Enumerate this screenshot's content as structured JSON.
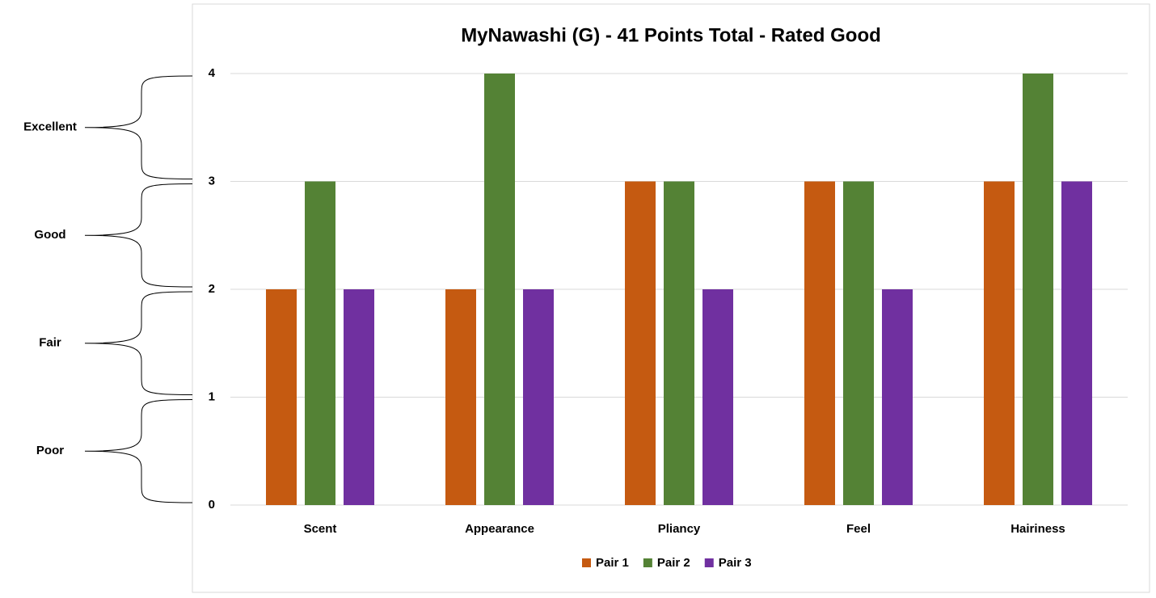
{
  "chart_data": {
    "type": "bar",
    "title": "MyNawashi (G) -  41 Points Total - Rated Good",
    "categories": [
      "Scent",
      "Appearance",
      "Pliancy",
      "Feel",
      "Hairiness"
    ],
    "series": [
      {
        "name": "Pair 1",
        "color": "#c55a11",
        "values": [
          2,
          2,
          3,
          3,
          3
        ]
      },
      {
        "name": "Pair 2",
        "color": "#548235",
        "values": [
          3,
          4,
          3,
          3,
          4
        ]
      },
      {
        "name": "Pair 3",
        "color": "#7030a0",
        "values": [
          2,
          2,
          2,
          2,
          3
        ]
      }
    ],
    "ylim": [
      0,
      4
    ],
    "yticks": [
      0,
      1,
      2,
      3,
      4
    ],
    "grid": true,
    "legend": "bottom",
    "annotations": [
      "Excellent",
      "Good",
      "Fair",
      "Poor"
    ]
  }
}
